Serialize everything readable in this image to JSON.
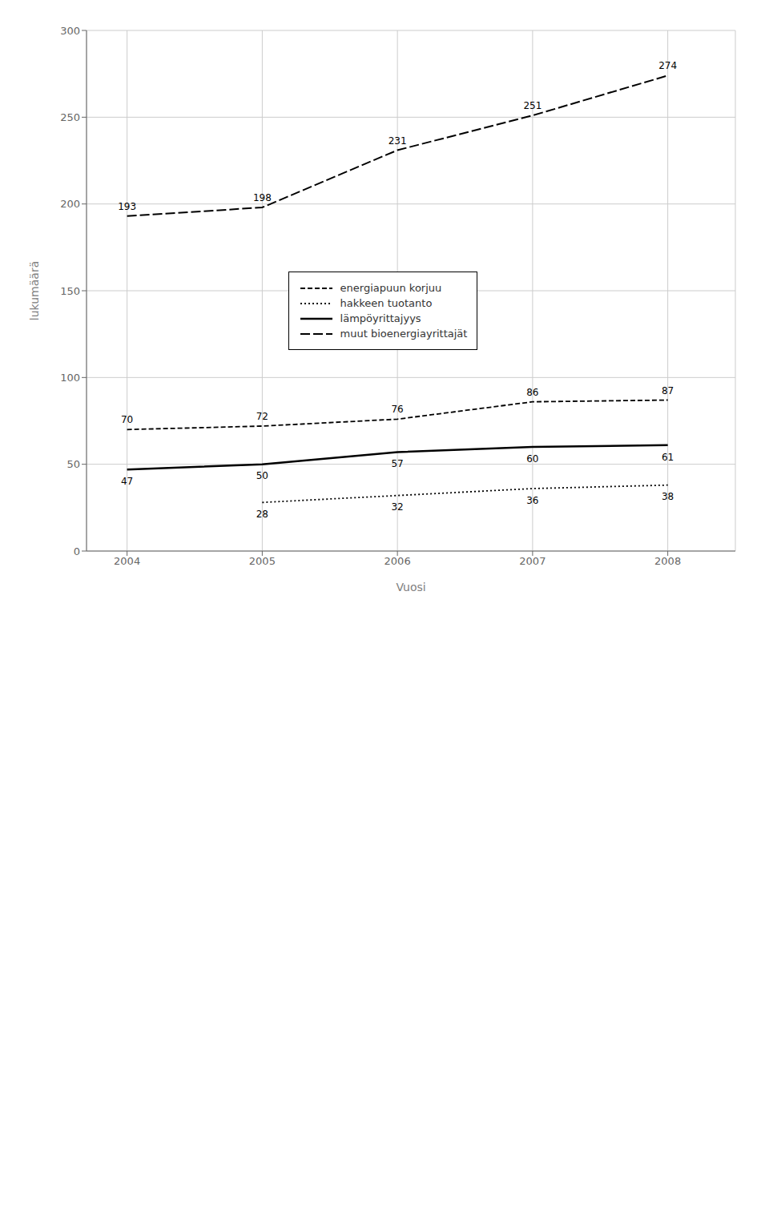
{
  "chart_data": {
    "type": "line",
    "xlabel": "Vuosi",
    "ylabel": "lukumäärä",
    "x": [
      2004,
      2005,
      2006,
      2007,
      2008
    ],
    "series": [
      {
        "name": "energiapuun korjuu",
        "color": "#000000",
        "line_style": "dashed",
        "values": [
          70,
          72,
          76,
          86,
          87
        ]
      },
      {
        "name": "hakkeen tuotanto",
        "color": "#000000",
        "line_style": "dotted",
        "values": [
          null,
          28,
          32,
          36,
          38
        ]
      },
      {
        "name": "lämpöyrittajyys",
        "color": "#000000",
        "line_style": "solid",
        "values": [
          47,
          50,
          57,
          60,
          61
        ]
      },
      {
        "name": "muut bioenergiayrittajät",
        "color": "#000000",
        "line_style": "long_dashed",
        "values": [
          193,
          198,
          231,
          251,
          274
        ]
      }
    ],
    "xlim": [
      2003.7,
      2008.5
    ],
    "xticks": [
      2004,
      2005,
      2006,
      2007,
      2008
    ],
    "ylim": [
      0,
      300
    ],
    "yticks": [
      0,
      50,
      100,
      150,
      200,
      250,
      300
    ],
    "grid": true,
    "legend": "center",
    "data_labels": true
  }
}
